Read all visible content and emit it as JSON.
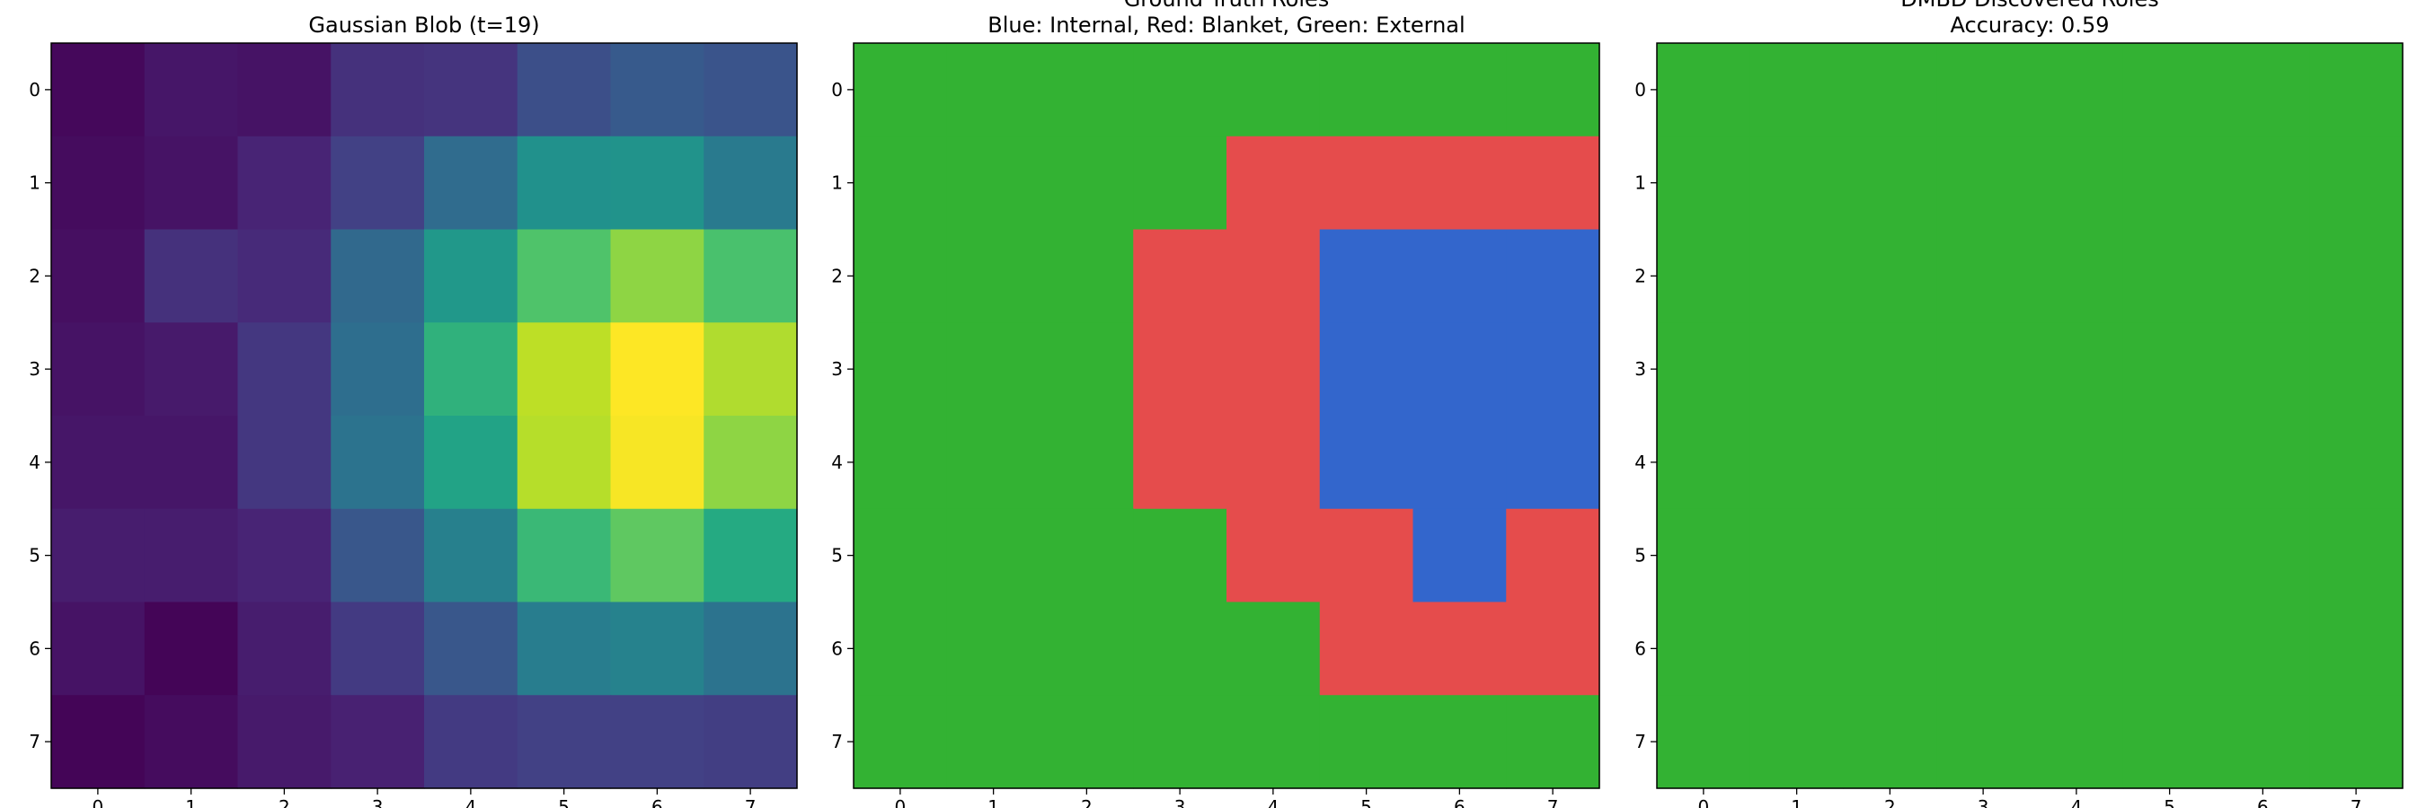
{
  "chart_data": [
    {
      "type": "heatmap",
      "title": "Gaussian Blob (t=19)",
      "colormap": "viridis",
      "x_ticks": [
        "0",
        "1",
        "2",
        "3",
        "4",
        "5",
        "6",
        "7"
      ],
      "y_ticks": [
        "0",
        "1",
        "2",
        "3",
        "4",
        "5",
        "6",
        "7"
      ],
      "values": [
        [
          0.02,
          0.06,
          0.05,
          0.14,
          0.15,
          0.24,
          0.28,
          0.26
        ],
        [
          0.03,
          0.05,
          0.1,
          0.19,
          0.35,
          0.5,
          0.51,
          0.41
        ],
        [
          0.04,
          0.14,
          0.12,
          0.34,
          0.53,
          0.72,
          0.83,
          0.71
        ],
        [
          0.05,
          0.07,
          0.16,
          0.36,
          0.64,
          0.9,
          1.0,
          0.88
        ],
        [
          0.06,
          0.06,
          0.16,
          0.38,
          0.58,
          0.89,
          0.99,
          0.83
        ],
        [
          0.08,
          0.08,
          0.1,
          0.27,
          0.43,
          0.67,
          0.75,
          0.61
        ],
        [
          0.05,
          0.01,
          0.08,
          0.17,
          0.27,
          0.42,
          0.44,
          0.38
        ],
        [
          0.01,
          0.03,
          0.07,
          0.09,
          0.17,
          0.19,
          0.19,
          0.18
        ]
      ]
    },
    {
      "type": "heatmap",
      "title": "Ground Truth Roles",
      "subtitle": "Blue: Internal, Red: Blanket, Green: External",
      "x_ticks": [
        "0",
        "1",
        "2",
        "3",
        "4",
        "5",
        "6",
        "7"
      ],
      "y_ticks": [
        "0",
        "1",
        "2",
        "3",
        "4",
        "5",
        "6",
        "7"
      ],
      "role_colors": {
        "Internal": "#3366cc",
        "Blanket": "#e54c4c",
        "External": "#33b233"
      },
      "values": [
        [
          "External",
          "External",
          "External",
          "External",
          "External",
          "External",
          "External",
          "External"
        ],
        [
          "External",
          "External",
          "External",
          "External",
          "Blanket",
          "Blanket",
          "Blanket",
          "Blanket"
        ],
        [
          "External",
          "External",
          "External",
          "Blanket",
          "Blanket",
          "Internal",
          "Internal",
          "Internal"
        ],
        [
          "External",
          "External",
          "External",
          "Blanket",
          "Blanket",
          "Internal",
          "Internal",
          "Internal"
        ],
        [
          "External",
          "External",
          "External",
          "Blanket",
          "Blanket",
          "Internal",
          "Internal",
          "Internal"
        ],
        [
          "External",
          "External",
          "External",
          "External",
          "Blanket",
          "Blanket",
          "Internal",
          "Blanket"
        ],
        [
          "External",
          "External",
          "External",
          "External",
          "External",
          "Blanket",
          "Blanket",
          "Blanket"
        ],
        [
          "External",
          "External",
          "External",
          "External",
          "External",
          "External",
          "External",
          "External"
        ]
      ]
    },
    {
      "type": "heatmap",
      "title": "DMBD Discovered Roles",
      "subtitle": "Accuracy: 0.59",
      "x_ticks": [
        "0",
        "1",
        "2",
        "3",
        "4",
        "5",
        "6",
        "7"
      ],
      "y_ticks": [
        "0",
        "1",
        "2",
        "3",
        "4",
        "5",
        "6",
        "7"
      ],
      "role_colors": {
        "Internal": "#3366cc",
        "Blanket": "#e54c4c",
        "External": "#33b233"
      },
      "values": [
        [
          "External",
          "External",
          "External",
          "External",
          "External",
          "External",
          "External",
          "External"
        ],
        [
          "External",
          "External",
          "External",
          "External",
          "External",
          "External",
          "External",
          "External"
        ],
        [
          "External",
          "External",
          "External",
          "External",
          "External",
          "External",
          "External",
          "External"
        ],
        [
          "External",
          "External",
          "External",
          "External",
          "External",
          "External",
          "External",
          "External"
        ],
        [
          "External",
          "External",
          "External",
          "External",
          "External",
          "External",
          "External",
          "External"
        ],
        [
          "External",
          "External",
          "External",
          "External",
          "External",
          "External",
          "External",
          "External"
        ],
        [
          "External",
          "External",
          "External",
          "External",
          "External",
          "External",
          "External",
          "External"
        ],
        [
          "External",
          "External",
          "External",
          "External",
          "External",
          "External",
          "External",
          "External"
        ]
      ]
    }
  ]
}
